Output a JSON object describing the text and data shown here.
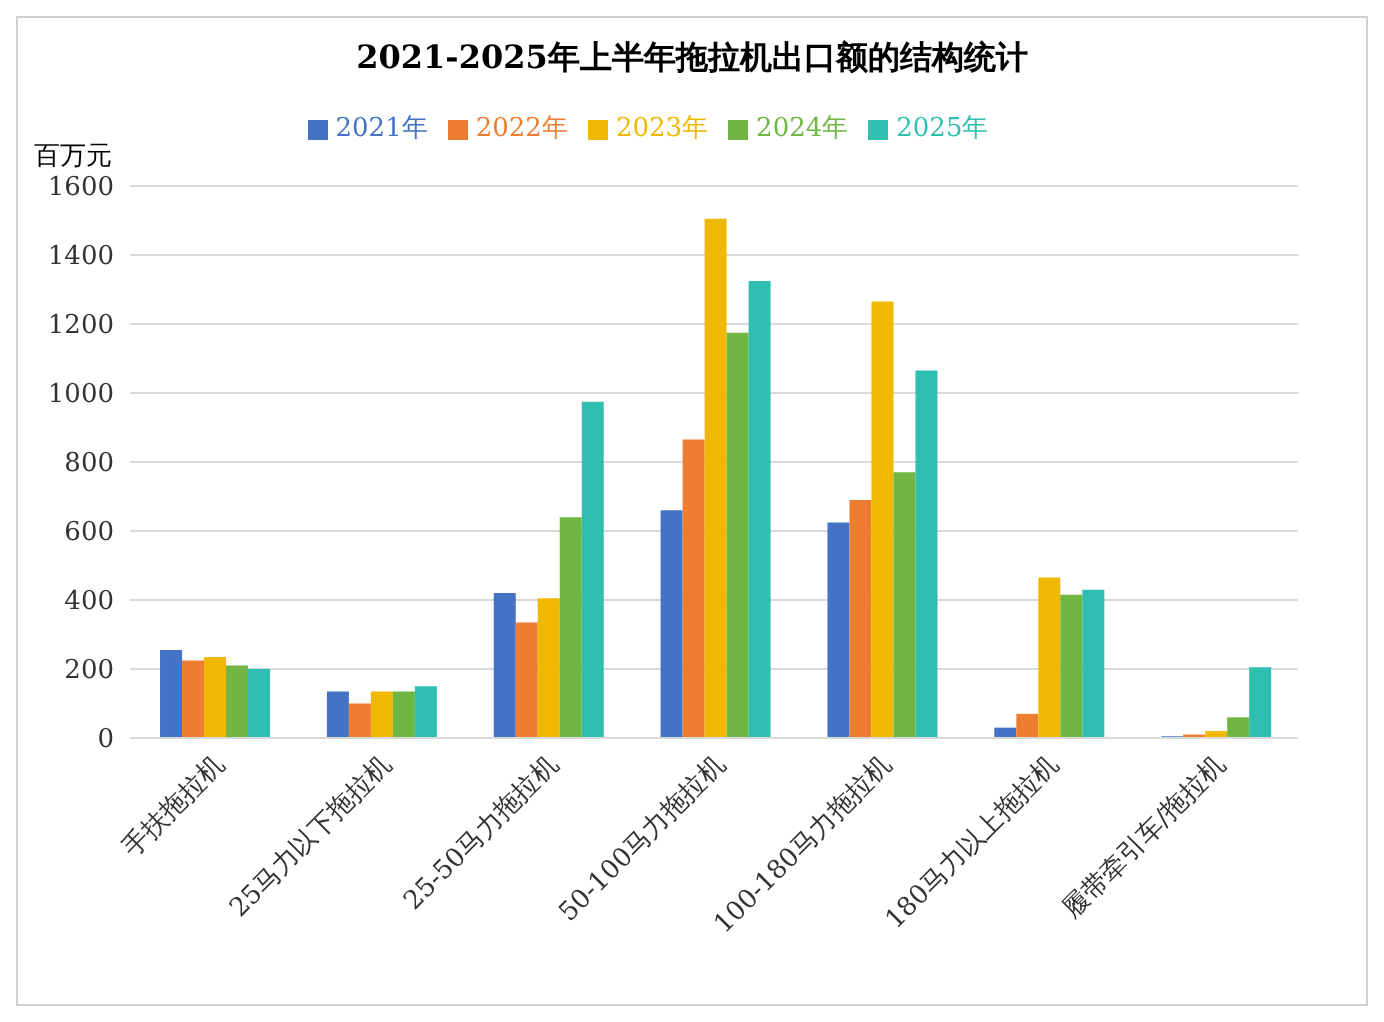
{
  "chart_data": {
    "type": "bar",
    "title": "2021-2025年上半年拖拉机出口额的结构统计",
    "ylabel": "百万元",
    "categories": [
      "手扶拖拉机",
      "25马力以下拖拉机",
      "25-50马力拖拉机",
      "50-100马力拖拉机",
      "100-180马力拖拉机",
      "180马力以上拖拉机",
      "履带牵引车/拖拉机"
    ],
    "series": [
      {
        "name": "2021年",
        "color": "#4472c4",
        "values": [
          255,
          135,
          420,
          660,
          625,
          30,
          5
        ]
      },
      {
        "name": "2022年",
        "color": "#ed7d31",
        "values": [
          225,
          100,
          335,
          865,
          690,
          70,
          10
        ]
      },
      {
        "name": "2023年",
        "color": "#f0b800",
        "values": [
          235,
          135,
          405,
          1505,
          1265,
          465,
          20
        ]
      },
      {
        "name": "2024年",
        "color": "#70b642",
        "values": [
          210,
          135,
          640,
          1175,
          770,
          415,
          60
        ]
      },
      {
        "name": "2025年",
        "color": "#2fbfb0",
        "values": [
          200,
          150,
          975,
          1325,
          1065,
          430,
          205
        ]
      }
    ],
    "ylim": [
      0,
      1600
    ],
    "yticks": [
      0,
      200,
      400,
      600,
      800,
      1000,
      1200,
      1400,
      1600
    ],
    "grid": "y",
    "legend": "top"
  }
}
